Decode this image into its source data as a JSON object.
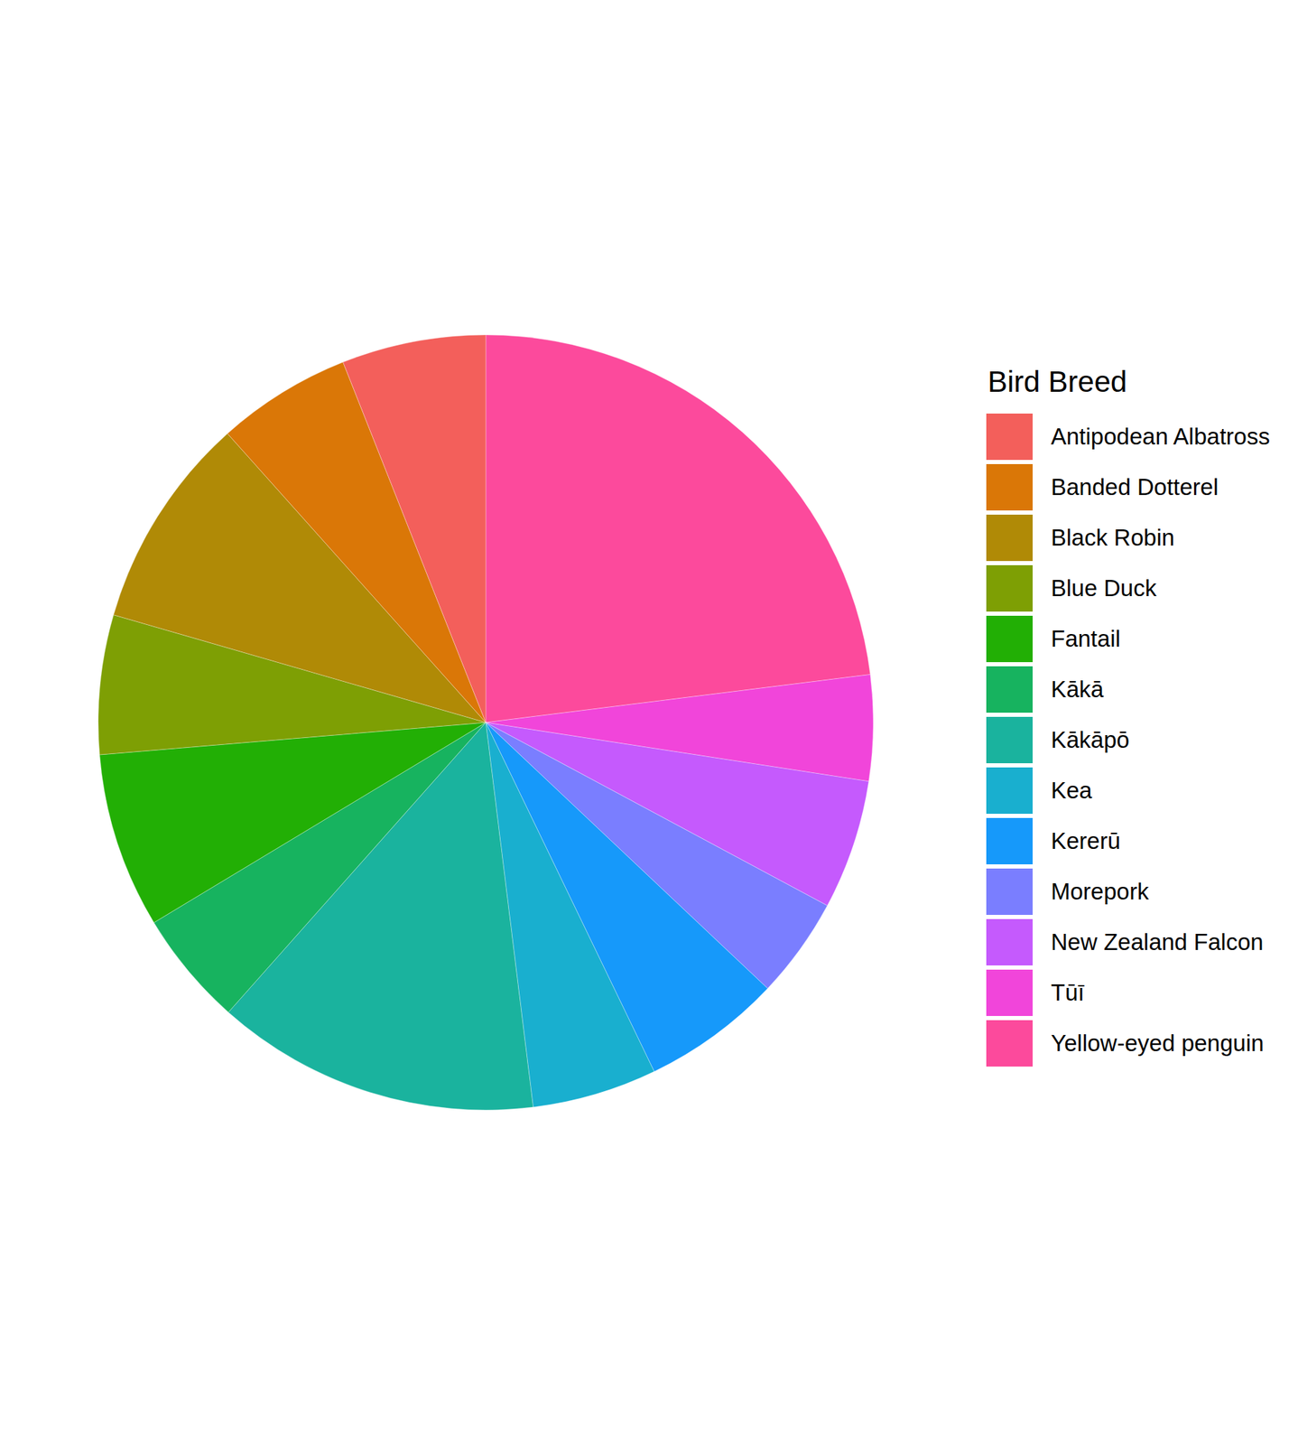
{
  "chart_data": {
    "type": "pie",
    "legend_title": "Bird Breed",
    "legend": "right",
    "categories": [
      "Antipodean Albatross",
      "Banded Dotterel",
      "Black Robin",
      "Blue Duck",
      "Fantail",
      "Kākā",
      "Kākāpō",
      "Kea",
      "Kererū",
      "Morepork",
      "New Zealand Falcon",
      "Tūī",
      "Yellow-eyed penguin"
    ],
    "values": [
      6.0,
      5.6,
      8.9,
      5.8,
      7.3,
      4.8,
      13.5,
      5.2,
      5.8,
      4.2,
      5.4,
      4.4,
      23.0
    ],
    "colors": [
      "#F35F5B",
      "#DA7707",
      "#B08A06",
      "#7E9F04",
      "#22AF05",
      "#17B35F",
      "#1AB39E",
      "#19AFCF",
      "#1699FA",
      "#7A7EFF",
      "#C55AFD",
      "#F145DA",
      "#FC4A9C"
    ],
    "tick_labels": false
  }
}
